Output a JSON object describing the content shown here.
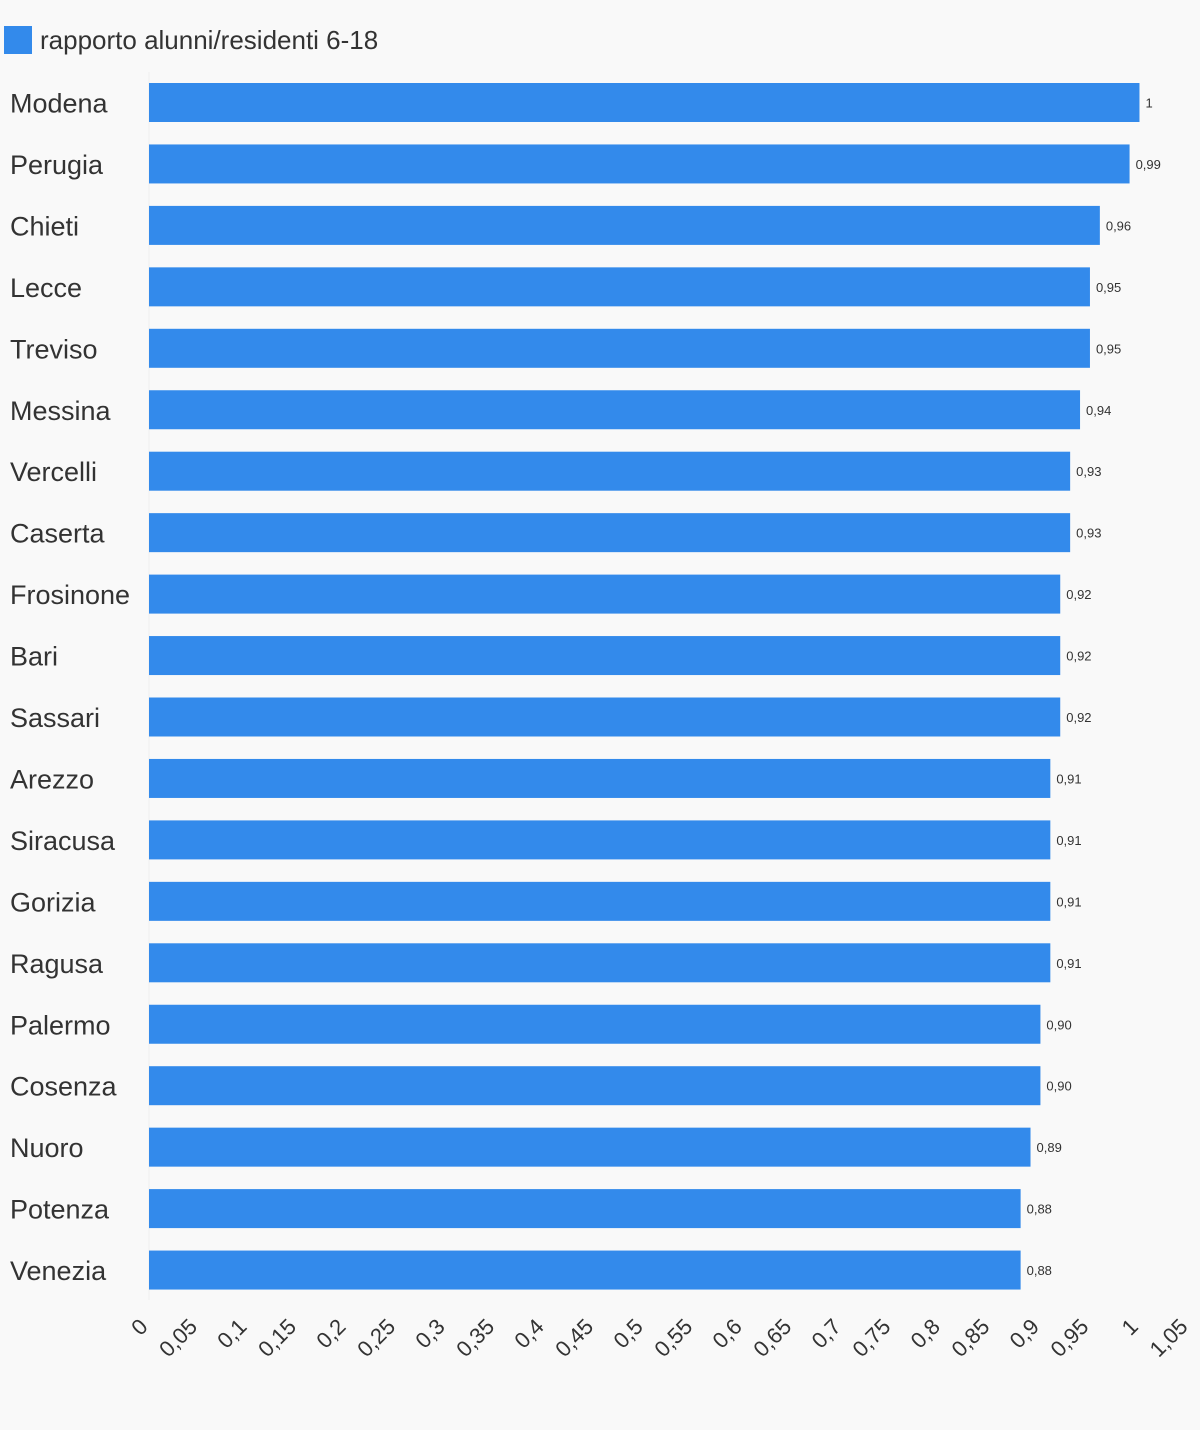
{
  "legend": {
    "label": "rapporto alunni/residenti 6-18",
    "color": "#338aeb"
  },
  "chart_data": {
    "type": "bar",
    "orientation": "horizontal",
    "series": [
      {
        "name": "rapporto alunni/residenti 6-18",
        "color": "#338aeb"
      }
    ],
    "categories": [
      "Modena",
      "Perugia",
      "Chieti",
      "Lecce",
      "Treviso",
      "Messina",
      "Vercelli",
      "Caserta",
      "Frosinone",
      "Bari",
      "Sassari",
      "Arezzo",
      "Siracusa",
      "Gorizia",
      "Ragusa",
      "Palermo",
      "Cosenza",
      "Nuoro",
      "Potenza",
      "Venezia"
    ],
    "values": [
      1.0,
      0.99,
      0.96,
      0.95,
      0.95,
      0.94,
      0.93,
      0.93,
      0.92,
      0.92,
      0.92,
      0.91,
      0.91,
      0.91,
      0.91,
      0.9,
      0.9,
      0.89,
      0.88,
      0.88
    ],
    "data_labels": [
      "1",
      "0,99",
      "0,96",
      "0,95",
      "0,95",
      "0,94",
      "0,93",
      "0,93",
      "0,92",
      "0,92",
      "0,92",
      "0,91",
      "0,91",
      "0,91",
      "0,91",
      "0,90",
      "0,90",
      "0,89",
      "0,88",
      "0,88"
    ],
    "xlim": [
      0,
      1.05
    ],
    "x_ticks": [
      0,
      0.05,
      0.1,
      0.15,
      0.2,
      0.25,
      0.3,
      0.35,
      0.4,
      0.45,
      0.5,
      0.55,
      0.6,
      0.65,
      0.7,
      0.75,
      0.8,
      0.85,
      0.9,
      0.95,
      1,
      1.05
    ],
    "x_tick_labels": [
      "0",
      "0,05",
      "0,1",
      "0,15",
      "0,2",
      "0,25",
      "0,3",
      "0,35",
      "0,4",
      "0,45",
      "0,5",
      "0,55",
      "0,6",
      "0,65",
      "0,7",
      "0,75",
      "0,8",
      "0,85",
      "0,9",
      "0,95",
      "1",
      "1,05"
    ],
    "grid": false,
    "legend_position": "top-left"
  }
}
